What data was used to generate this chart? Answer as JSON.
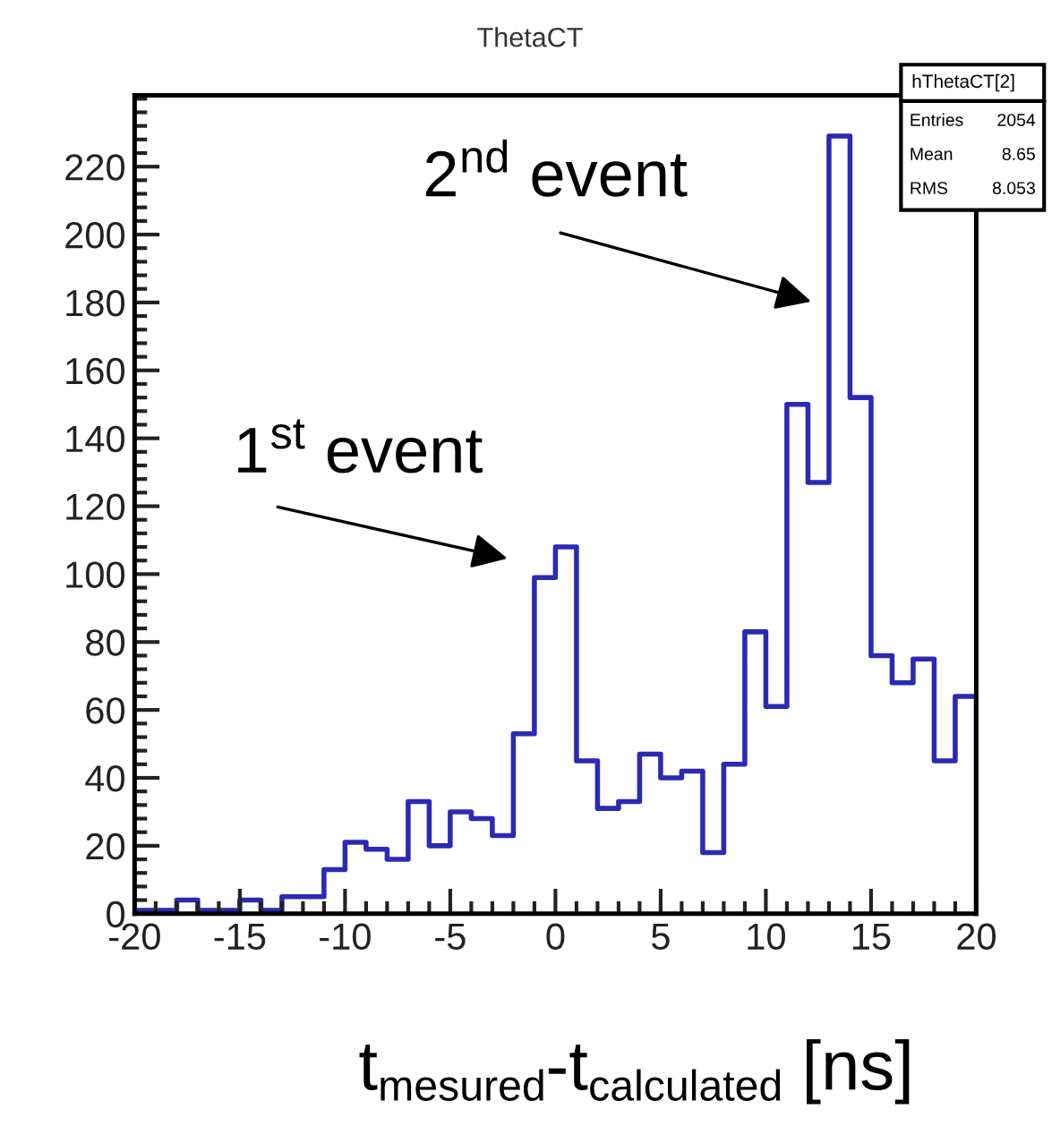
{
  "chart_data": {
    "type": "histogram",
    "title": "ThetaCT",
    "xlabel": "t$_{mesured}$-t$_{calculated}$ [ns]",
    "bins": [
      -20,
      -19,
      -18,
      -17,
      -16,
      -15,
      -14,
      -13,
      -12,
      -11,
      -10,
      -9,
      -8,
      -7,
      -6,
      -5,
      -4,
      -3,
      -2,
      -1,
      0,
      1,
      2,
      3,
      4,
      5,
      6,
      7,
      8,
      9,
      10,
      11,
      12,
      13,
      14,
      15,
      16,
      17,
      18,
      19,
      20
    ],
    "values": [
      1,
      1,
      4,
      1,
      1,
      4,
      1,
      5,
      5,
      13,
      21,
      19,
      16,
      33,
      20,
      30,
      28,
      23,
      53,
      99,
      108,
      45,
      31,
      33,
      47,
      40,
      42,
      18,
      44,
      83,
      61,
      150,
      127,
      229,
      152,
      76,
      68,
      75,
      45,
      64
    ],
    "color": "#2a2ab4",
    "xlim": [
      -20,
      20
    ],
    "xticks": [
      -20,
      -15,
      -10,
      -5,
      0,
      5,
      10,
      15,
      20
    ],
    "ylim": [
      0,
      241
    ],
    "yticks": [
      0,
      20,
      40,
      60,
      80,
      100,
      120,
      140,
      160,
      180,
      200,
      220
    ],
    "grid": false,
    "legend": false,
    "annotations": [
      "1$^{st}$ event",
      "2$^{nd}$ event",
      "hThetaCT[2]",
      "Entries",
      "2054",
      "Mean",
      "8.65",
      "RMS",
      "8.053"
    ]
  }
}
